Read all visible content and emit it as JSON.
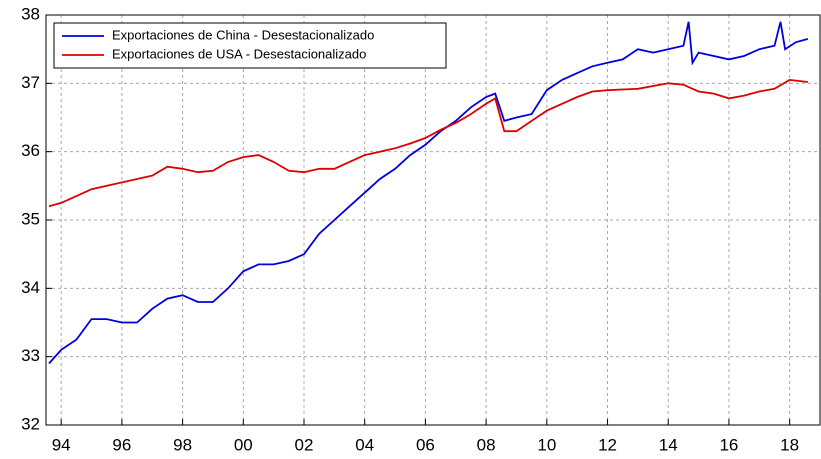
{
  "chart_data": {
    "type": "line",
    "legend": "upper left",
    "grid": true,
    "xlim": [
      1993.5,
      2019
    ],
    "xticks": [
      {
        "value": 1994,
        "label": "94"
      },
      {
        "value": 1996,
        "label": "96"
      },
      {
        "value": 1998,
        "label": "98"
      },
      {
        "value": 2000,
        "label": "00"
      },
      {
        "value": 2002,
        "label": "02"
      },
      {
        "value": 2004,
        "label": "04"
      },
      {
        "value": 2006,
        "label": "06"
      },
      {
        "value": 2008,
        "label": "08"
      },
      {
        "value": 2010,
        "label": "10"
      },
      {
        "value": 2012,
        "label": "12"
      },
      {
        "value": 2014,
        "label": "14"
      },
      {
        "value": 2016,
        "label": "16"
      },
      {
        "value": 2018,
        "label": "18"
      }
    ],
    "ylim": [
      32,
      38
    ],
    "yticks": [
      32,
      33,
      34,
      35,
      36,
      37,
      38
    ],
    "series": [
      {
        "name": "Exportaciones de China - Desestacionalizado",
        "color": "#0000dd",
        "x": [
          1993.6,
          1994.0,
          1994.5,
          1995.0,
          1995.5,
          1996.0,
          1996.5,
          1997.0,
          1997.5,
          1998.0,
          1998.5,
          1999.0,
          1999.5,
          2000.0,
          2000.5,
          2001.0,
          2001.5,
          2002.0,
          2002.5,
          2003.0,
          2003.5,
          2004.0,
          2004.5,
          2005.0,
          2005.5,
          2006.0,
          2006.5,
          2007.0,
          2007.5,
          2008.0,
          2008.3,
          2008.6,
          2009.0,
          2009.5,
          2010.0,
          2010.5,
          2011.0,
          2011.5,
          2012.0,
          2012.5,
          2013.0,
          2013.5,
          2014.0,
          2014.5,
          2014.67,
          2014.8,
          2015.0,
          2015.5,
          2016.0,
          2016.5,
          2017.0,
          2017.5,
          2017.7,
          2017.85,
          2018.2,
          2018.6
        ],
        "values": [
          32.9,
          33.1,
          33.25,
          33.55,
          33.55,
          33.5,
          33.5,
          33.7,
          33.85,
          33.9,
          33.8,
          33.8,
          34.0,
          34.25,
          34.35,
          34.35,
          34.4,
          34.5,
          34.8,
          35.0,
          35.2,
          35.4,
          35.6,
          35.75,
          35.95,
          36.1,
          36.3,
          36.45,
          36.65,
          36.8,
          36.85,
          36.45,
          36.5,
          36.55,
          36.9,
          37.05,
          37.15,
          37.25,
          37.3,
          37.35,
          37.5,
          37.45,
          37.5,
          37.55,
          37.9,
          37.3,
          37.45,
          37.4,
          37.35,
          37.4,
          37.5,
          37.55,
          37.9,
          37.5,
          37.6,
          37.65
        ]
      },
      {
        "name": "Exportaciones de USA - Desestacionalizado",
        "color": "#dd0000",
        "x": [
          1993.6,
          1994.0,
          1994.5,
          1995.0,
          1996.0,
          1997.0,
          1997.5,
          1998.0,
          1998.5,
          1999.0,
          1999.5,
          2000.0,
          2000.5,
          2001.0,
          2001.5,
          2002.0,
          2002.5,
          2003.0,
          2003.5,
          2004.0,
          2004.5,
          2005.0,
          2005.5,
          2006.0,
          2006.5,
          2007.0,
          2007.5,
          2008.0,
          2008.3,
          2008.6,
          2009.0,
          2009.5,
          2010.0,
          2010.5,
          2011.0,
          2011.5,
          2012.0,
          2013.0,
          2014.0,
          2014.5,
          2015.0,
          2015.5,
          2016.0,
          2016.5,
          2017.0,
          2017.5,
          2018.0,
          2018.6
        ],
        "values": [
          35.2,
          35.25,
          35.35,
          35.45,
          35.55,
          35.65,
          35.78,
          35.75,
          35.7,
          35.72,
          35.85,
          35.92,
          35.95,
          35.85,
          35.72,
          35.7,
          35.75,
          35.75,
          35.85,
          35.95,
          36.0,
          36.05,
          36.12,
          36.2,
          36.32,
          36.42,
          36.55,
          36.7,
          36.78,
          36.3,
          36.3,
          36.45,
          36.6,
          36.7,
          36.8,
          36.88,
          36.9,
          36.92,
          37.0,
          36.98,
          36.88,
          36.85,
          36.78,
          36.82,
          36.88,
          36.92,
          37.05,
          37.02
        ]
      }
    ]
  }
}
